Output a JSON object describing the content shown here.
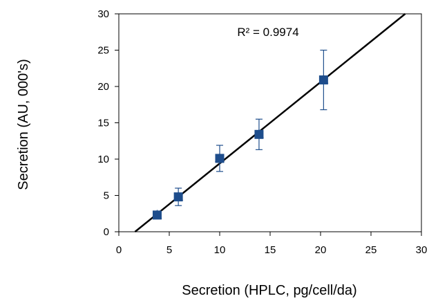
{
  "chart_data": {
    "type": "scatter",
    "xlabel": "Secretion (HPLC, pg/cell/da)",
    "ylabel": "Secretion (AU, 000's)",
    "xlim": [
      0,
      30
    ],
    "ylim": [
      0,
      30
    ],
    "x_ticks": [
      "0",
      "5",
      "10",
      "15",
      "20",
      "25",
      "30"
    ],
    "y_ticks": [
      "0",
      "5",
      "10",
      "15",
      "20",
      "25",
      "30"
    ],
    "grid": false,
    "annotation": "R² = 0.9974",
    "marker_color": "#1F4E8C",
    "trendline_color": "#000000",
    "points": [
      {
        "x": 3.8,
        "y": 2.3,
        "err": 0.4
      },
      {
        "x": 5.9,
        "y": 4.8,
        "err": 1.2
      },
      {
        "x": 10.0,
        "y": 10.1,
        "err": 1.8
      },
      {
        "x": 13.9,
        "y": 13.4,
        "err": 2.1
      },
      {
        "x": 20.3,
        "y": 20.9,
        "err": 4.1
      }
    ],
    "trendline": {
      "slope": 1.12,
      "intercept": -1.8
    }
  }
}
